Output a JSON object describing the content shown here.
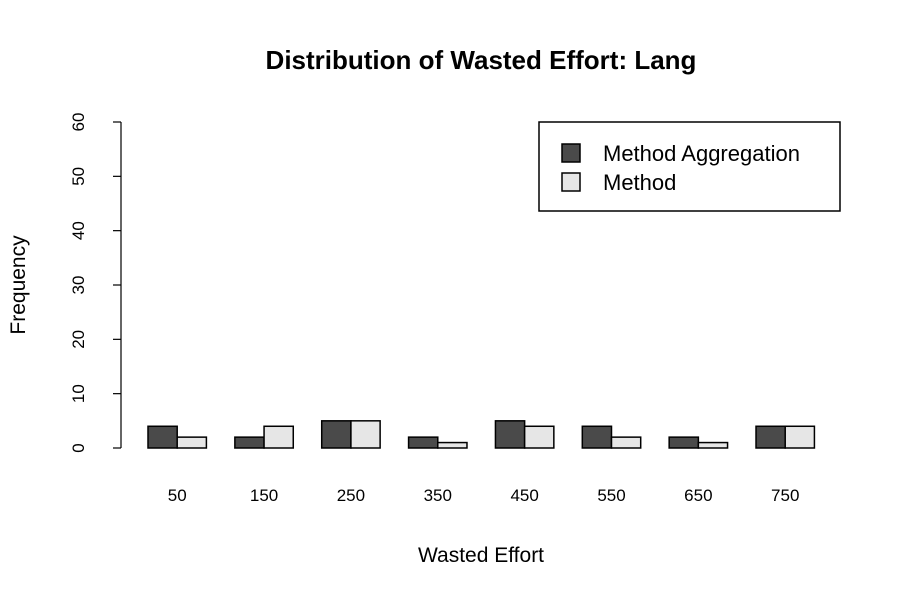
{
  "chart_data": {
    "type": "bar",
    "title": "Distribution of Wasted Effort: Lang",
    "xlabel": "Wasted Effort",
    "ylabel": "Frequency",
    "ylim": [
      0,
      60
    ],
    "yticks": [
      "0",
      "10",
      "20",
      "30",
      "40",
      "50",
      "60"
    ],
    "categories": [
      "50",
      "150",
      "250",
      "350",
      "450",
      "550",
      "650",
      "750"
    ],
    "series": [
      {
        "name": "Method Aggregation",
        "color": "#4a4a4a",
        "values": [
          4,
          2,
          5,
          2,
          5,
          4,
          2,
          4
        ]
      },
      {
        "name": "Method",
        "color": "#e6e6e6",
        "values": [
          2,
          4,
          5,
          1,
          4,
          2,
          1,
          4
        ]
      }
    ],
    "legend_position": "top-right",
    "grid": false
  }
}
